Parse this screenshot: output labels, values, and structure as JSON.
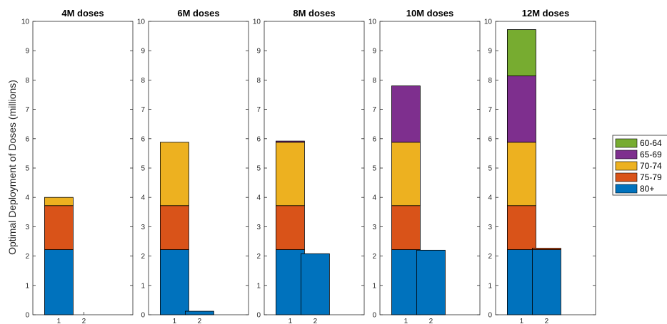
{
  "chart_data": {
    "type": "bar",
    "stacked": true,
    "ylabel": "Optimal Deployment of Doses (millions)",
    "ylim": [
      0,
      10
    ],
    "yticks": [
      "0",
      "1",
      "2",
      "3",
      "4",
      "5",
      "6",
      "7",
      "8",
      "9",
      "10"
    ],
    "categories": [
      "1",
      "2"
    ],
    "legend": {
      "position": "right",
      "entries": [
        {
          "name": "60-64",
          "color": "#77AC30"
        },
        {
          "name": "65-69",
          "color": "#7E2F8E"
        },
        {
          "name": "70-74",
          "color": "#EDB120"
        },
        {
          "name": "75-79",
          "color": "#D95319"
        },
        {
          "name": "80+",
          "color": "#0072BD"
        }
      ]
    },
    "panels": [
      {
        "title": "4M doses",
        "series": [
          {
            "name": "80+",
            "values": [
              2.22,
              0
            ]
          },
          {
            "name": "75-79",
            "values": [
              1.5,
              0
            ]
          },
          {
            "name": "70-74",
            "values": [
              0.28,
              0
            ]
          },
          {
            "name": "65-69",
            "values": [
              0,
              0
            ]
          },
          {
            "name": "60-64",
            "values": [
              0,
              0
            ]
          }
        ]
      },
      {
        "title": "6M doses",
        "series": [
          {
            "name": "80+",
            "values": [
              2.22,
              0.12
            ]
          },
          {
            "name": "75-79",
            "values": [
              1.5,
              0
            ]
          },
          {
            "name": "70-74",
            "values": [
              2.16,
              0
            ]
          },
          {
            "name": "65-69",
            "values": [
              0,
              0
            ]
          },
          {
            "name": "60-64",
            "values": [
              0,
              0
            ]
          }
        ]
      },
      {
        "title": "8M doses",
        "series": [
          {
            "name": "80+",
            "values": [
              2.22,
              2.08
            ]
          },
          {
            "name": "75-79",
            "values": [
              1.5,
              0
            ]
          },
          {
            "name": "70-74",
            "values": [
              2.16,
              0
            ]
          },
          {
            "name": "65-69",
            "values": [
              0.04,
              0
            ]
          },
          {
            "name": "60-64",
            "values": [
              0,
              0
            ]
          }
        ]
      },
      {
        "title": "10M doses",
        "series": [
          {
            "name": "80+",
            "values": [
              2.22,
              2.2
            ]
          },
          {
            "name": "75-79",
            "values": [
              1.5,
              0
            ]
          },
          {
            "name": "70-74",
            "values": [
              2.16,
              0
            ]
          },
          {
            "name": "65-69",
            "values": [
              1.92,
              0
            ]
          },
          {
            "name": "60-64",
            "values": [
              0,
              0
            ]
          }
        ]
      },
      {
        "title": "12M doses",
        "series": [
          {
            "name": "80+",
            "values": [
              2.22,
              2.22
            ]
          },
          {
            "name": "75-79",
            "values": [
              1.5,
              0.05
            ]
          },
          {
            "name": "70-74",
            "values": [
              2.16,
              0
            ]
          },
          {
            "name": "65-69",
            "values": [
              2.26,
              0
            ]
          },
          {
            "name": "60-64",
            "values": [
              1.58,
              0
            ]
          }
        ]
      }
    ]
  }
}
